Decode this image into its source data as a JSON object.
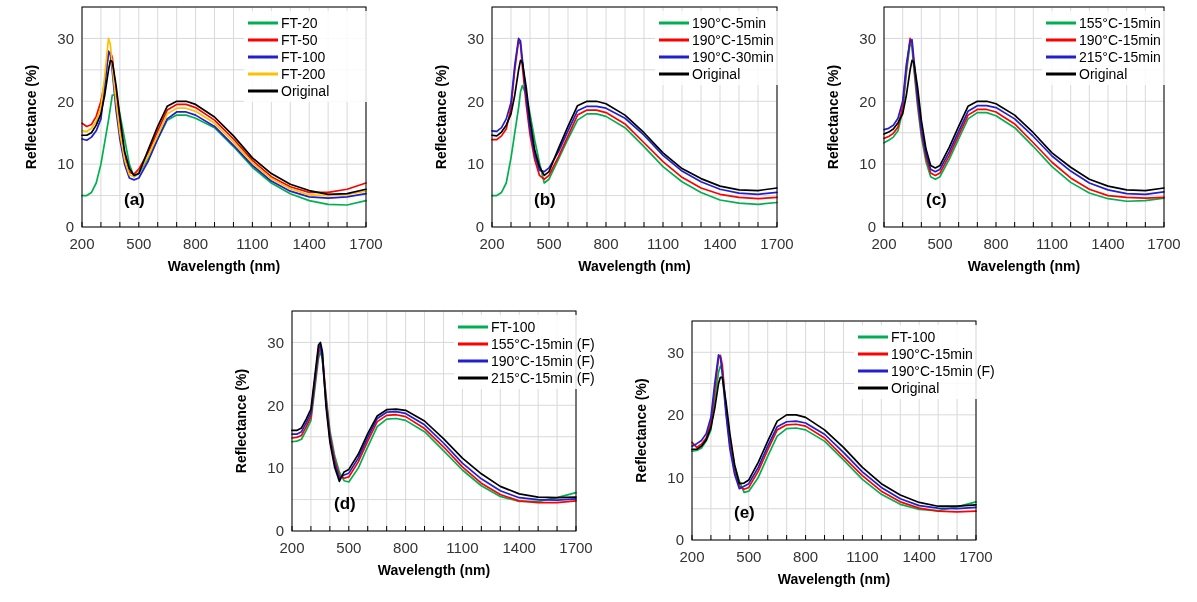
{
  "chart_data": [
    {
      "type": "line",
      "xlabel": "Wavelength (nm)",
      "ylabel": "Reflectance (%)",
      "xlim": [
        200,
        1700
      ],
      "ylim": [
        0,
        35
      ],
      "xticks": [
        200,
        {
          "value": 300,
          "label": null
        },
        {
          "value": 400,
          "label": null
        },
        500,
        {
          "value": 600,
          "label": null
        },
        {
          "value": 700,
          "label": null
        },
        800,
        {
          "value": 900,
          "label": null
        },
        {
          "value": 1000,
          "label": null
        },
        1100,
        {
          "value": 1200,
          "label": null
        },
        {
          "value": 1300,
          "label": null
        },
        1400,
        {
          "value": 1500,
          "label": null
        },
        {
          "value": 1600,
          "label": null
        },
        1700
      ],
      "yticks": [
        0,
        {
          "value": 5,
          "label": null
        },
        10,
        {
          "value": 15,
          "label": null
        },
        20,
        {
          "value": 25,
          "label": null
        },
        30,
        {
          "value": 35,
          "label": null
        }
      ],
      "grid": true,
      "legend": "top right",
      "annotations": [
        "(a)"
      ],
      "x": [
        200,
        225,
        250,
        275,
        300,
        320,
        340,
        350,
        360,
        380,
        400,
        425,
        450,
        475,
        500,
        550,
        600,
        650,
        700,
        750,
        800,
        900,
        1000,
        1100,
        1200,
        1300,
        1400,
        1500,
        1600,
        1700
      ],
      "series": [
        {
          "name": "FT-20",
          "color": "#00b050",
          "values": [
            5,
            5,
            5.5,
            7,
            10,
            13.5,
            17,
            19,
            21,
            21,
            18,
            14,
            10,
            8,
            8.5,
            11,
            14,
            17,
            17.8,
            17.8,
            17.3,
            15.8,
            12.8,
            9.5,
            7,
            5.3,
            4.2,
            3.6,
            3.5,
            4.2
          ]
        },
        {
          "name": "FT-50",
          "color": "#ff0000",
          "values": [
            16.5,
            16,
            16.3,
            17.6,
            20,
            23,
            27.5,
            27.8,
            27,
            21,
            16,
            11.2,
            8.7,
            8.4,
            9.2,
            11.9,
            15.3,
            18.6,
            19.5,
            19.5,
            19,
            17,
            14,
            10.6,
            8,
            6.4,
            5.5,
            5.5,
            6,
            7
          ]
        },
        {
          "name": "FT-100",
          "color": "#2020d0",
          "values": [
            14,
            13.8,
            14.3,
            15.3,
            17.2,
            22.5,
            28,
            27.3,
            24.8,
            18.6,
            14,
            10,
            7.8,
            7.5,
            7.8,
            10.5,
            14,
            17.2,
            18.3,
            18.3,
            17.8,
            16,
            13,
            9.8,
            7.3,
            5.7,
            4.8,
            4.6,
            4.8,
            5.3
          ]
        },
        {
          "name": "FT-200",
          "color": "#ffc000",
          "values": [
            15.3,
            15.2,
            15.7,
            16.8,
            19,
            24,
            30,
            29,
            25.6,
            20,
            15,
            10.7,
            8.3,
            8,
            8.7,
            11.3,
            14.6,
            18,
            18.9,
            18.9,
            18.4,
            16.5,
            13.5,
            10.2,
            7.7,
            6.1,
            5.1,
            5,
            5.2,
            5.7
          ]
        },
        {
          "name": "Original",
          "color": "#000000",
          "values": [
            14.6,
            14.6,
            15,
            16.2,
            18,
            21,
            25,
            26.5,
            26.3,
            22.5,
            17.5,
            12,
            9.3,
            8.2,
            8.5,
            12.3,
            16,
            19.2,
            20,
            20,
            19.5,
            17.5,
            14.5,
            11,
            8.5,
            6.8,
            5.8,
            5.2,
            5.3,
            6
          ]
        }
      ]
    },
    {
      "type": "line",
      "xlabel": "Wavelength (nm)",
      "ylabel": "Reflectance (%)",
      "xlim": [
        200,
        1700
      ],
      "ylim": [
        0,
        35
      ],
      "xticks": [
        200,
        {
          "value": 300,
          "label": null
        },
        {
          "value": 400,
          "label": null
        },
        500,
        {
          "value": 600,
          "label": null
        },
        {
          "value": 700,
          "label": null
        },
        800,
        {
          "value": 900,
          "label": null
        },
        {
          "value": 1000,
          "label": null
        },
        1100,
        {
          "value": 1200,
          "label": null
        },
        {
          "value": 1300,
          "label": null
        },
        1400,
        {
          "value": 1500,
          "label": null
        },
        {
          "value": 1600,
          "label": null
        },
        1700
      ],
      "yticks": [
        0,
        {
          "value": 5,
          "label": null
        },
        10,
        {
          "value": 15,
          "label": null
        },
        20,
        {
          "value": 25,
          "label": null
        },
        30,
        {
          "value": 35,
          "label": null
        }
      ],
      "grid": true,
      "legend": "top right",
      "annotations": [
        "(b)"
      ],
      "x": [
        200,
        225,
        250,
        275,
        300,
        320,
        340,
        350,
        360,
        380,
        400,
        425,
        450,
        475,
        500,
        550,
        600,
        650,
        700,
        750,
        800,
        900,
        1000,
        1100,
        1200,
        1300,
        1400,
        1500,
        1600,
        1700
      ],
      "series": [
        {
          "name": "190°C-5min",
          "color": "#00b050",
          "values": [
            5,
            5,
            5.5,
            7,
            11,
            15,
            19,
            21.5,
            22.5,
            21,
            18,
            13.8,
            10.2,
            7,
            7.6,
            10.8,
            14,
            17,
            18,
            18,
            17.6,
            15.8,
            12.8,
            9.6,
            7.2,
            5.5,
            4.3,
            3.8,
            3.6,
            3.9
          ]
        },
        {
          "name": "190°C-15min",
          "color": "#ff0000",
          "values": [
            13.9,
            13.9,
            14.5,
            15.6,
            19,
            25,
            29.7,
            29,
            25.5,
            19.5,
            14.7,
            10.7,
            8.2,
            7.6,
            8.2,
            11.2,
            14.5,
            17.8,
            18.6,
            18.6,
            18.2,
            16.4,
            13.4,
            10.4,
            7.9,
            6.2,
            5.2,
            4.7,
            4.5,
            4.7
          ]
        },
        {
          "name": "190°C-30min",
          "color": "#2020d0",
          "values": [
            15.3,
            15.2,
            15.8,
            17.2,
            19.8,
            25.8,
            30,
            29.6,
            26.6,
            20.6,
            15.5,
            11.5,
            9,
            8.8,
            9.4,
            12,
            15.3,
            18.5,
            19.2,
            19.2,
            18.9,
            17.3,
            14.6,
            11.4,
            8.9,
            7.2,
            6,
            5.4,
            5.2,
            5.5
          ]
        },
        {
          "name": "Original",
          "color": "#000000",
          "values": [
            14.6,
            14.5,
            15.1,
            16.2,
            18,
            21,
            25,
            26.5,
            26.2,
            22.2,
            17,
            12.2,
            9.6,
            8.2,
            8.8,
            12.5,
            16,
            19.3,
            20,
            20,
            19.6,
            17.8,
            15,
            11.8,
            9.3,
            7.7,
            6.5,
            5.9,
            5.8,
            6.2
          ]
        }
      ]
    },
    {
      "type": "line",
      "xlabel": "Wavelength (nm)",
      "ylabel": "Reflectance (%)",
      "xlim": [
        200,
        1700
      ],
      "ylim": [
        0,
        35
      ],
      "xticks": [
        200,
        {
          "value": 300,
          "label": null
        },
        {
          "value": 400,
          "label": null
        },
        500,
        {
          "value": 600,
          "label": null
        },
        {
          "value": 700,
          "label": null
        },
        800,
        {
          "value": 900,
          "label": null
        },
        {
          "value": 1000,
          "label": null
        },
        1100,
        {
          "value": 1200,
          "label": null
        },
        {
          "value": 1300,
          "label": null
        },
        1400,
        {
          "value": 1500,
          "label": null
        },
        {
          "value": 1600,
          "label": null
        },
        1700
      ],
      "yticks": [
        0,
        {
          "value": 5,
          "label": null
        },
        10,
        {
          "value": 15,
          "label": null
        },
        20,
        {
          "value": 25,
          "label": null
        },
        30,
        {
          "value": 35,
          "label": null
        }
      ],
      "grid": true,
      "legend": "top right",
      "annotations": [
        "(c)"
      ],
      "x": [
        200,
        225,
        250,
        275,
        300,
        320,
        340,
        350,
        360,
        380,
        400,
        425,
        450,
        475,
        500,
        550,
        600,
        650,
        700,
        750,
        800,
        900,
        1000,
        1100,
        1200,
        1300,
        1400,
        1500,
        1600,
        1700
      ],
      "series": [
        {
          "name": "155°C-15min",
          "color": "#00b050",
          "values": [
            13.4,
            13.8,
            14.3,
            15.3,
            18.4,
            24.5,
            29.3,
            28.6,
            25.2,
            19.2,
            14.4,
            10.4,
            8,
            7.6,
            8,
            10.8,
            14,
            17.2,
            18.2,
            18.2,
            17.7,
            15.8,
            12.8,
            9.6,
            7.1,
            5.4,
            4.5,
            4.1,
            4.2,
            4.6
          ]
        },
        {
          "name": "190°C-15min",
          "color": "#ff0000",
          "values": [
            14.1,
            14.4,
            14.9,
            15.9,
            19.2,
            25.2,
            30,
            29.2,
            25.9,
            19.9,
            15,
            11,
            8.6,
            8.2,
            8.6,
            11.4,
            14.6,
            17.8,
            18.7,
            18.7,
            18.3,
            16.4,
            13.4,
            10.3,
            7.8,
            6,
            5,
            4.7,
            4.6,
            4.7
          ]
        },
        {
          "name": "215°C-15min",
          "color": "#2020d0",
          "values": [
            15.5,
            15.7,
            16.2,
            17.3,
            20,
            25.9,
            29.6,
            29.8,
            26.7,
            20.6,
            15.6,
            11.6,
            9.2,
            8.8,
            9.2,
            12,
            15.2,
            18.4,
            19.3,
            19.3,
            19,
            17.2,
            14.4,
            11.3,
            8.9,
            7,
            5.9,
            5.3,
            5.2,
            5.6
          ]
        },
        {
          "name": "Original",
          "color": "#000000",
          "values": [
            14.8,
            15.1,
            15.6,
            16.6,
            18,
            21,
            25,
            26.5,
            26.2,
            22.2,
            17,
            12.4,
            9.8,
            9.4,
            9.8,
            12.7,
            16,
            19.2,
            20,
            20,
            19.6,
            17.8,
            15,
            11.8,
            9.5,
            7.6,
            6.5,
            5.9,
            5.8,
            6.2
          ]
        }
      ]
    },
    {
      "type": "line",
      "xlabel": "Wavelength (nm)",
      "ylabel": "Reflectance (%)",
      "xlim": [
        200,
        1700
      ],
      "ylim": [
        0,
        35
      ],
      "xticks": [
        200,
        {
          "value": 300,
          "label": null
        },
        {
          "value": 400,
          "label": null
        },
        500,
        {
          "value": 600,
          "label": null
        },
        {
          "value": 700,
          "label": null
        },
        800,
        {
          "value": 900,
          "label": null
        },
        {
          "value": 1000,
          "label": null
        },
        1100,
        {
          "value": 1200,
          "label": null
        },
        {
          "value": 1300,
          "label": null
        },
        1400,
        {
          "value": 1500,
          "label": null
        },
        {
          "value": 1600,
          "label": null
        },
        1700
      ],
      "yticks": [
        0,
        {
          "value": 5,
          "label": null
        },
        10,
        {
          "value": 15,
          "label": null
        },
        20,
        {
          "value": 25,
          "label": null
        },
        30,
        {
          "value": 35,
          "label": null
        }
      ],
      "grid": true,
      "legend": "top right",
      "annotations": [
        "(d)"
      ],
      "x": [
        200,
        225,
        250,
        275,
        300,
        320,
        340,
        350,
        360,
        380,
        400,
        425,
        450,
        475,
        500,
        550,
        600,
        650,
        700,
        750,
        800,
        900,
        1000,
        1100,
        1200,
        1300,
        1400,
        1500,
        1600,
        1700
      ],
      "series": [
        {
          "name": "FT-100",
          "color": "#00b050",
          "values": [
            14.2,
            14.3,
            14.6,
            16,
            17.6,
            22.5,
            27.5,
            28.5,
            27.5,
            21.5,
            16,
            12,
            9.4,
            8,
            7.8,
            10,
            13.4,
            16.6,
            17.8,
            17.9,
            17.6,
            15.8,
            12.8,
            9.7,
            7.2,
            5.5,
            4.7,
            4.7,
            5.3,
            6.1
          ]
        },
        {
          "name": "155°C-15min (F)",
          "color": "#ff0000",
          "values": [
            14.8,
            14.9,
            15.2,
            16.6,
            18.2,
            23.2,
            28.3,
            29.2,
            28.4,
            20.9,
            15.4,
            11.4,
            8.8,
            8.4,
            8.6,
            11,
            14.3,
            17.4,
            18.4,
            18.5,
            18.2,
            16.3,
            13.4,
            10.2,
            7.6,
            5.8,
            4.8,
            4.5,
            4.5,
            4.8
          ]
        },
        {
          "name": "190°C-15min (F)",
          "color": "#2020d0",
          "values": [
            15.4,
            15.4,
            15.8,
            17.2,
            18.8,
            23.8,
            29,
            29.6,
            27.4,
            20.3,
            14.8,
            10.8,
            8.4,
            8.9,
            9.2,
            11.6,
            14.9,
            17.9,
            18.9,
            19,
            18.7,
            16.9,
            14,
            10.8,
            8.3,
            6.4,
            5.3,
            5,
            4.9,
            5.1
          ]
        },
        {
          "name": "215°C-15min (F)",
          "color": "#000000",
          "values": [
            16,
            16,
            16.4,
            17.8,
            19.4,
            24.5,
            29.6,
            30,
            28.6,
            19.7,
            14.2,
            10.2,
            7.9,
            9.4,
            9.8,
            12.2,
            15.5,
            18.3,
            19.3,
            19.4,
            19.2,
            17.5,
            14.7,
            11.6,
            9.1,
            7.1,
            5.9,
            5.4,
            5.3,
            5.4
          ]
        }
      ]
    },
    {
      "type": "line",
      "xlabel": "Wavelength (nm)",
      "ylabel": "Reflectance (%)",
      "xlim": [
        200,
        1700
      ],
      "ylim": [
        0,
        35
      ],
      "xticks": [
        200,
        {
          "value": 300,
          "label": null
        },
        {
          "value": 400,
          "label": null
        },
        500,
        {
          "value": 600,
          "label": null
        },
        {
          "value": 700,
          "label": null
        },
        800,
        {
          "value": 900,
          "label": null
        },
        {
          "value": 1000,
          "label": null
        },
        1100,
        {
          "value": 1200,
          "label": null
        },
        {
          "value": 1300,
          "label": null
        },
        1400,
        {
          "value": 1500,
          "label": null
        },
        {
          "value": 1600,
          "label": null
        },
        1700
      ],
      "yticks": [
        0,
        {
          "value": 5,
          "label": null
        },
        10,
        {
          "value": 15,
          "label": null
        },
        20,
        {
          "value": 25,
          "label": null
        },
        30,
        {
          "value": 35,
          "label": null
        }
      ],
      "grid": true,
      "legend": "top right",
      "annotations": [
        "(e)"
      ],
      "x": [
        200,
        225,
        250,
        275,
        300,
        320,
        340,
        350,
        360,
        380,
        400,
        425,
        450,
        475,
        500,
        550,
        600,
        650,
        700,
        750,
        800,
        900,
        1000,
        1100,
        1200,
        1300,
        1400,
        1500,
        1600,
        1700
      ],
      "series": [
        {
          "name": "FT-100",
          "color": "#00b050",
          "values": [
            14.2,
            14.3,
            14.7,
            15.8,
            17.6,
            22.5,
            26.8,
            27.8,
            27.2,
            21.2,
            16,
            12,
            9.4,
            7.6,
            7.8,
            10,
            13.4,
            16.6,
            17.8,
            17.9,
            17.6,
            15.8,
            12.8,
            9.7,
            7.3,
            5.7,
            4.9,
            4.7,
            5.3,
            6.1
          ]
        },
        {
          "name": "190°C-15min",
          "color": "#ff0000",
          "values": [
            15.6,
            14.8,
            15.3,
            16.3,
            18.8,
            24,
            29,
            29.5,
            28,
            20.6,
            15.2,
            11,
            8.6,
            8.1,
            8.4,
            11,
            14.4,
            17.6,
            18.4,
            18.5,
            18.2,
            16.3,
            13.3,
            10.3,
            7.8,
            6.1,
            5.1,
            4.6,
            4.5,
            4.6
          ]
        },
        {
          "name": "190°C-15min (F)",
          "color": "#2020d0",
          "values": [
            15,
            15.4,
            15.9,
            17,
            19.6,
            25,
            29.6,
            29.2,
            26.5,
            20,
            14.6,
            10.5,
            8.2,
            8.6,
            9,
            11.6,
            15,
            18.1,
            18.9,
            19,
            18.7,
            16.9,
            14,
            10.9,
            8.4,
            6.6,
            5.5,
            5.1,
            5,
            5.2
          ]
        },
        {
          "name": "Original",
          "color": "#000000",
          "values": [
            14.5,
            14.5,
            15,
            16,
            18,
            21,
            25,
            26,
            26,
            22,
            17,
            12,
            9,
            9.1,
            9.6,
            12.4,
            15.8,
            19,
            20,
            20,
            19.6,
            17.6,
            14.8,
            11.6,
            9,
            7.2,
            6,
            5.4,
            5.4,
            5.6
          ]
        }
      ]
    }
  ]
}
